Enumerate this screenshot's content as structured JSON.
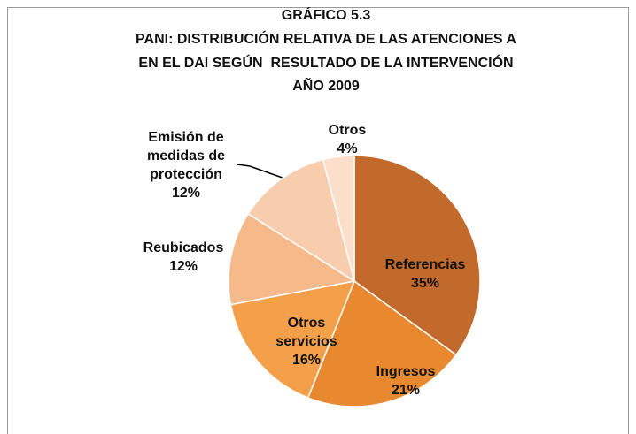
{
  "chart_data": {
    "type": "pie",
    "title": [
      "GRÁFICO 5.3",
      "PANI: DISTRIBUCIÓN RELATIVA DE LAS ATENCIONES A",
      "EN EL DAI SEGÚN  RESULTADO DE LA INTERVENCIÓN",
      "AÑO 2009"
    ],
    "categories": [
      "Referencias",
      "Ingresos",
      "Otros servicios",
      "Reubicados",
      "Emisión de medidas de protección",
      "Otros"
    ],
    "values": [
      35,
      21,
      16,
      12,
      12,
      4
    ],
    "value_labels": [
      "35%",
      "21%",
      "16%",
      "12%",
      "12%",
      "4%"
    ],
    "colors": [
      "#c2692c",
      "#e8892f",
      "#f4a04a",
      "#f6b98a",
      "#f8cdae",
      "#fbdfca"
    ]
  }
}
